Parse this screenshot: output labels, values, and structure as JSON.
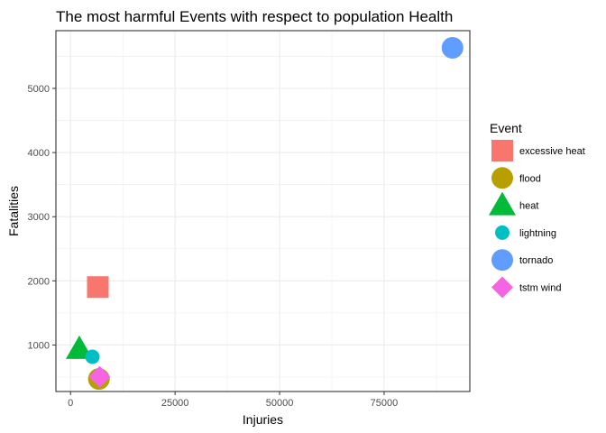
{
  "chart_data": {
    "type": "scatter",
    "title": "The most harmful Events with respect to population Health",
    "xlabel": "Injuries",
    "ylabel": "Fatalities",
    "xlim": [
      -3500,
      95500
    ],
    "ylim": [
      275,
      5900
    ],
    "x_ticks": [
      0,
      25000,
      50000,
      75000
    ],
    "x_tick_labels": [
      "0",
      "25000",
      "50000",
      "75000"
    ],
    "y_ticks": [
      1000,
      2000,
      3000,
      4000,
      5000
    ],
    "y_tick_labels": [
      "1000",
      "2000",
      "3000",
      "4000",
      "5000"
    ],
    "grid": true,
    "legend_title": "Event",
    "legend_position": "right",
    "series": [
      {
        "name": "excessive heat",
        "shape": "square",
        "color": "#F8766D",
        "x": 6525,
        "y": 1903
      },
      {
        "name": "flood",
        "shape": "circle",
        "color": "#B79F00",
        "x": 6789,
        "y": 470
      },
      {
        "name": "heat",
        "shape": "triangle",
        "color": "#00BA38",
        "x": 2100,
        "y": 937
      },
      {
        "name": "lightning",
        "shape": "circle-small",
        "color": "#00BFC4",
        "x": 5230,
        "y": 816
      },
      {
        "name": "tornado",
        "shape": "circle",
        "color": "#619CFF",
        "x": 91346,
        "y": 5633
      },
      {
        "name": "tstm wind",
        "shape": "diamond",
        "color": "#F564E3",
        "x": 6957,
        "y": 504
      }
    ]
  }
}
